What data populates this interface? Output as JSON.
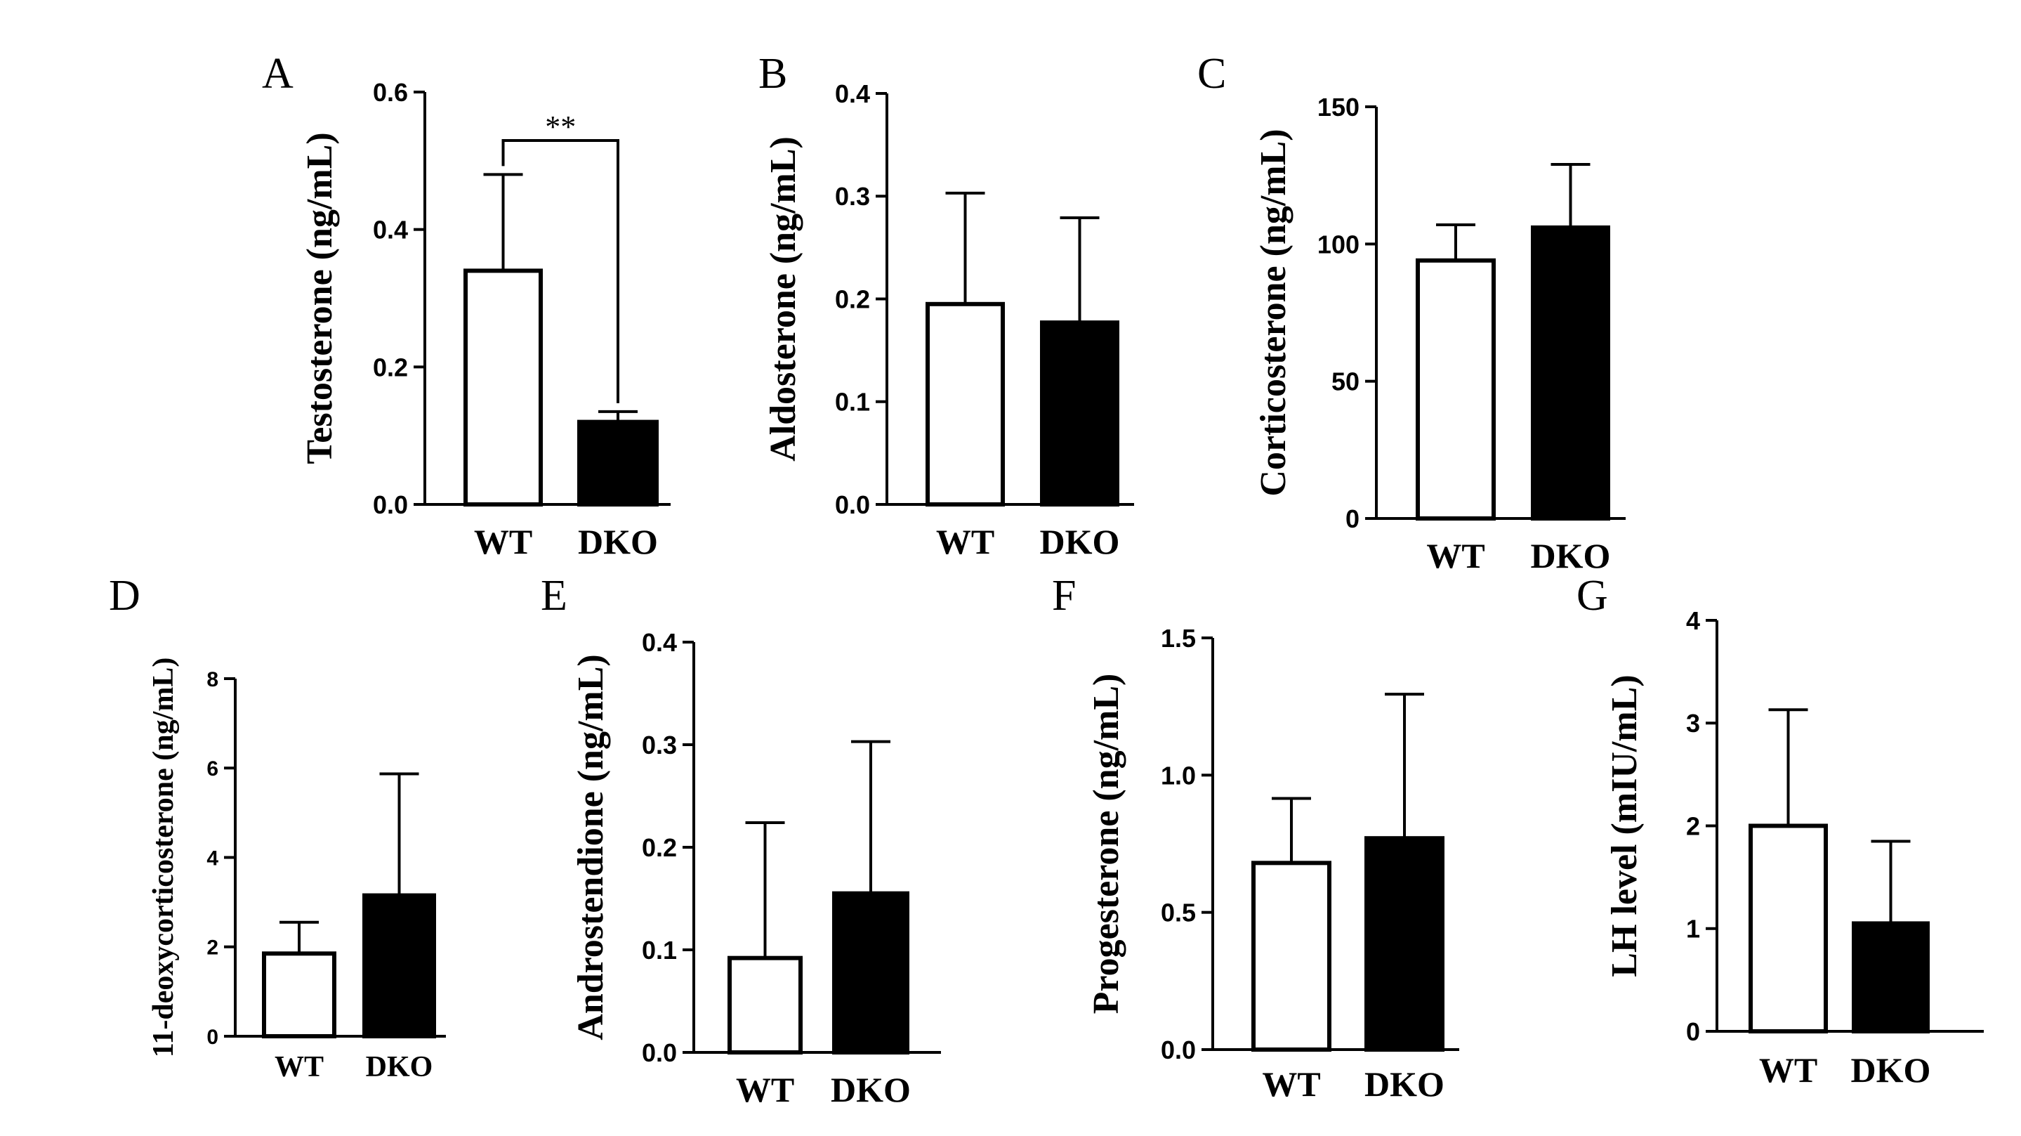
{
  "figure": {
    "fill_colors": {
      "WT": "#ffffff",
      "DKO": "#000000"
    },
    "line_color": "#000000",
    "panels": [
      {
        "id": "A",
        "letter": "A",
        "ylabel": "Testosterone (ng/mL)",
        "categories": [
          "WT",
          "DKO"
        ],
        "ylim": [
          0,
          0.6
        ],
        "yticks": [
          0,
          0.2,
          0.4,
          0.6
        ],
        "ytick_labels": [
          "0.0",
          "0.2",
          "0.4",
          "0.6"
        ],
        "values": [
          0.34,
          0.12
        ],
        "errors": [
          0.14,
          0.015
        ],
        "significance": {
          "pair": [
            0,
            1
          ],
          "label": "**"
        }
      },
      {
        "id": "B",
        "letter": "B",
        "ylabel": "Aldosterone (ng/mL)",
        "categories": [
          "WT",
          "DKO"
        ],
        "ylim": [
          0,
          0.4
        ],
        "yticks": [
          0,
          0.1,
          0.2,
          0.3,
          0.4
        ],
        "ytick_labels": [
          "0.0",
          "0.1",
          "0.2",
          "0.3",
          "0.4"
        ],
        "values": [
          0.195,
          0.177
        ],
        "errors": [
          0.108,
          0.102
        ]
      },
      {
        "id": "C",
        "letter": "C",
        "ylabel": "Corticosterone (ng/mL)",
        "categories": [
          "WT",
          "DKO"
        ],
        "ylim": [
          0,
          150
        ],
        "yticks": [
          0,
          50,
          100,
          150
        ],
        "ytick_labels": [
          "0",
          "50",
          "100",
          "150"
        ],
        "values": [
          94,
          106
        ],
        "errors": [
          13,
          23
        ]
      },
      {
        "id": "D",
        "letter": "D",
        "ylabel": "11-deoxycorticosterone (ng/mL)",
        "categories": [
          "WT",
          "DKO"
        ],
        "ylim": [
          0,
          8
        ],
        "yticks": [
          0,
          2,
          4,
          6,
          8
        ],
        "ytick_labels": [
          "0",
          "2",
          "4",
          "6",
          "8"
        ],
        "values": [
          1.85,
          3.15
        ],
        "errors": [
          0.7,
          2.72
        ]
      },
      {
        "id": "E",
        "letter": "E",
        "ylabel": "Androstendione (ng/mL)",
        "categories": [
          "WT",
          "DKO"
        ],
        "ylim": [
          0,
          0.4
        ],
        "yticks": [
          0,
          0.1,
          0.2,
          0.3,
          0.4
        ],
        "ytick_labels": [
          "0.0",
          "0.1",
          "0.2",
          "0.3",
          "0.4"
        ],
        "values": [
          0.092,
          0.155
        ],
        "errors": [
          0.132,
          0.148
        ]
      },
      {
        "id": "F",
        "letter": "F",
        "ylabel": "Progesterone (ng/mL)",
        "categories": [
          "WT",
          "DKO"
        ],
        "ylim": [
          0,
          1.5
        ],
        "yticks": [
          0,
          0.5,
          1.0,
          1.5
        ],
        "ytick_labels": [
          "0.0",
          "0.5",
          "1.0",
          "1.5"
        ],
        "values": [
          0.68,
          0.77
        ],
        "errors": [
          0.235,
          0.525
        ]
      },
      {
        "id": "G",
        "letter": "G",
        "ylabel": "LH level (mIU/mL)",
        "categories": [
          "WT",
          "DKO"
        ],
        "ylim": [
          0,
          4
        ],
        "yticks": [
          0,
          1,
          2,
          3,
          4
        ],
        "ytick_labels": [
          "0",
          "1",
          "2",
          "3",
          "4"
        ],
        "values": [
          2.0,
          1.05
        ],
        "errors": [
          1.13,
          0.8
        ]
      }
    ]
  },
  "chart_data": [
    {
      "type": "bar",
      "title": "A",
      "xlabel": "",
      "ylabel": "Testosterone (ng/mL)",
      "categories": [
        "WT",
        "DKO"
      ],
      "values": [
        0.34,
        0.12
      ],
      "errors": [
        0.14,
        0.015
      ],
      "ylim": [
        0,
        0.6
      ],
      "annotations": [
        "**"
      ]
    },
    {
      "type": "bar",
      "title": "B",
      "xlabel": "",
      "ylabel": "Aldosterone (ng/mL)",
      "categories": [
        "WT",
        "DKO"
      ],
      "values": [
        0.195,
        0.177
      ],
      "errors": [
        0.108,
        0.102
      ],
      "ylim": [
        0,
        0.4
      ]
    },
    {
      "type": "bar",
      "title": "C",
      "xlabel": "",
      "ylabel": "Corticosterone (ng/mL)",
      "categories": [
        "WT",
        "DKO"
      ],
      "values": [
        94,
        106
      ],
      "errors": [
        13,
        23
      ],
      "ylim": [
        0,
        150
      ]
    },
    {
      "type": "bar",
      "title": "D",
      "xlabel": "",
      "ylabel": "11-deoxycorticosterone (ng/mL)",
      "categories": [
        "WT",
        "DKO"
      ],
      "values": [
        1.85,
        3.15
      ],
      "errors": [
        0.7,
        2.72
      ],
      "ylim": [
        0,
        8
      ]
    },
    {
      "type": "bar",
      "title": "E",
      "xlabel": "",
      "ylabel": "Androstendione (ng/mL)",
      "categories": [
        "WT",
        "DKO"
      ],
      "values": [
        0.092,
        0.155
      ],
      "errors": [
        0.132,
        0.148
      ],
      "ylim": [
        0,
        0.4
      ]
    },
    {
      "type": "bar",
      "title": "F",
      "xlabel": "",
      "ylabel": "Progesterone (ng/mL)",
      "categories": [
        "WT",
        "DKO"
      ],
      "values": [
        0.68,
        0.77
      ],
      "errors": [
        0.235,
        0.525
      ],
      "ylim": [
        0,
        1.5
      ]
    },
    {
      "type": "bar",
      "title": "G",
      "xlabel": "",
      "ylabel": "LH level (mIU/mL)",
      "categories": [
        "WT",
        "DKO"
      ],
      "values": [
        2.0,
        1.05
      ],
      "errors": [
        1.13,
        0.8
      ],
      "ylim": [
        0,
        4
      ]
    }
  ]
}
